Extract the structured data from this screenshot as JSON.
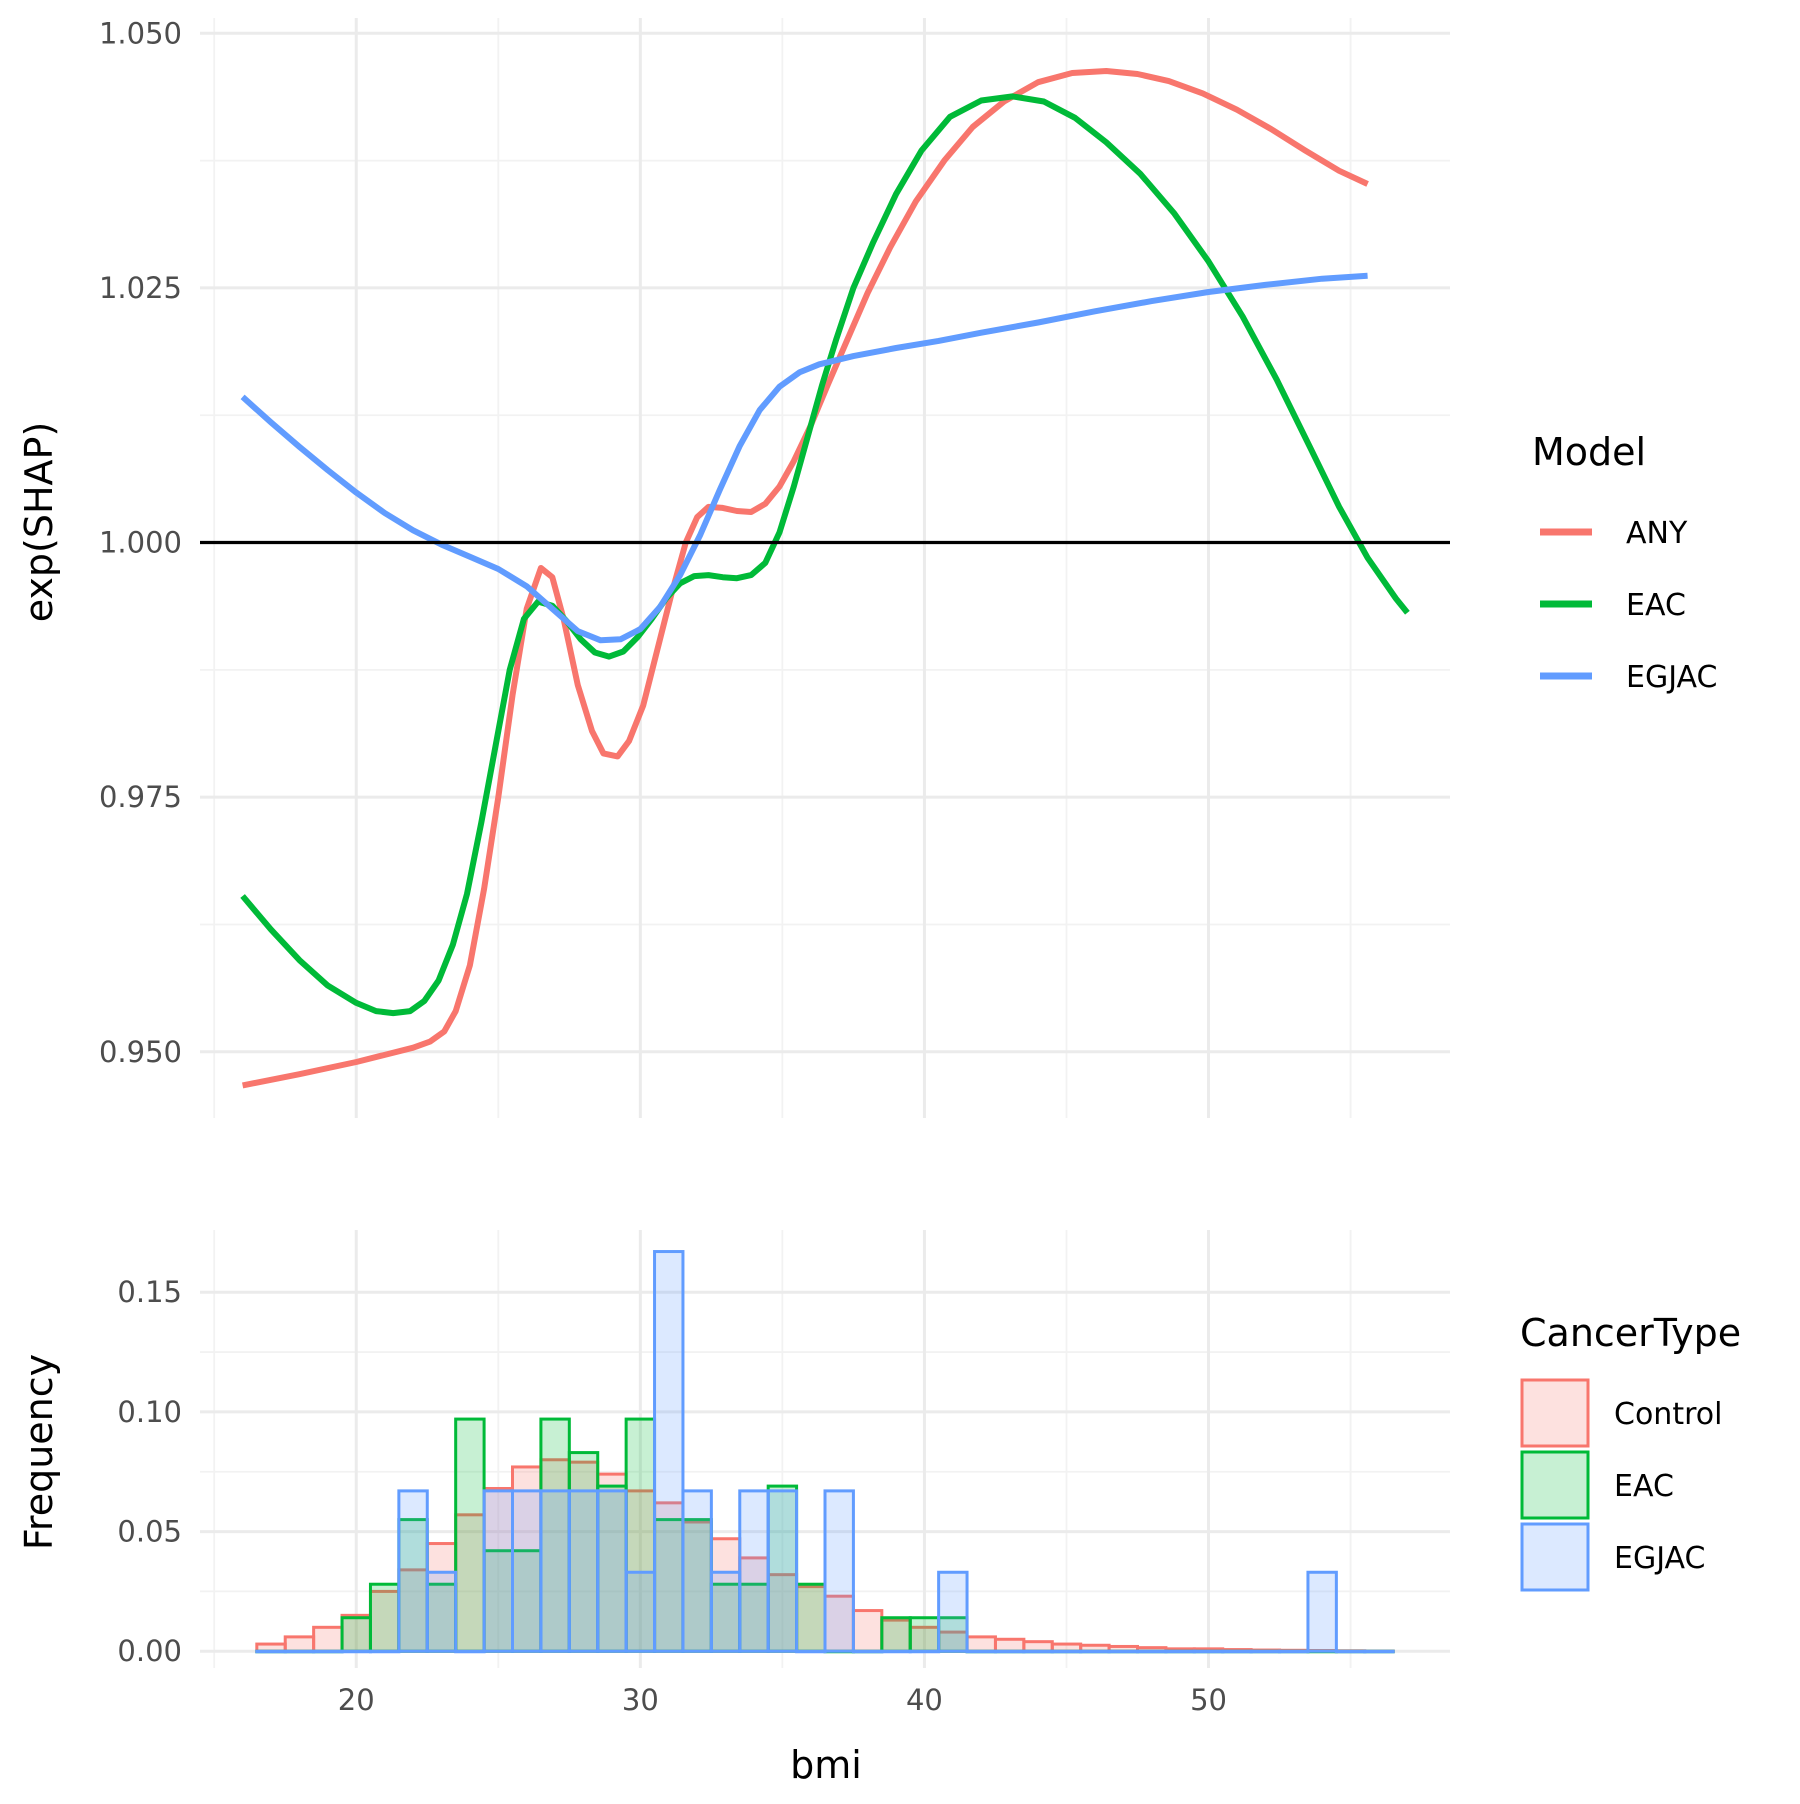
{
  "chart_data": [
    {
      "type": "line",
      "xlabel": "",
      "ylabel": "exp(SHAP)",
      "xlim": [
        14.5,
        58.5
      ],
      "ylim": [
        0.9435,
        1.0515
      ],
      "yticks": [
        0.95,
        0.975,
        1.0,
        1.025,
        1.05
      ],
      "ytick_labels": [
        "0.950",
        "0.975",
        "1.000",
        "1.025",
        "1.050"
      ],
      "xticks": [
        20,
        30,
        40,
        50
      ],
      "show_x_tick_labels": false,
      "grid": true,
      "reference_line": 1.0,
      "legend": {
        "title": "Model",
        "position": "right"
      },
      "series": [
        {
          "name": "ANY",
          "color": "#F8766D",
          "points": [
            [
              16,
              0.9467
            ],
            [
              18,
              0.9478
            ],
            [
              20,
              0.949
            ],
            [
              22,
              0.9504
            ],
            [
              22.6,
              0.951
            ],
            [
              23.1,
              0.952
            ],
            [
              23.5,
              0.954
            ],
            [
              24,
              0.9585
            ],
            [
              24.5,
              0.966
            ],
            [
              25,
              0.975
            ],
            [
              25.5,
              0.985
            ],
            [
              26,
              0.9935
            ],
            [
              26.5,
              0.9975
            ],
            [
              26.9,
              0.9966
            ],
            [
              27.3,
              0.9925
            ],
            [
              27.8,
              0.986
            ],
            [
              28.3,
              0.9815
            ],
            [
              28.7,
              0.9793
            ],
            [
              29.2,
              0.979
            ],
            [
              29.6,
              0.9805
            ],
            [
              30.1,
              0.984
            ],
            [
              30.6,
              0.9895
            ],
            [
              31.1,
              0.995
            ],
            [
              31.6,
              1.0
            ],
            [
              32,
              1.0025
            ],
            [
              32.4,
              1.0035
            ],
            [
              32.9,
              1.0034
            ],
            [
              33.4,
              1.0031
            ],
            [
              33.9,
              1.003
            ],
            [
              34.4,
              1.0038
            ],
            [
              34.9,
              1.0055
            ],
            [
              35.4,
              1.008
            ],
            [
              36,
              1.0115
            ],
            [
              36.6,
              1.0155
            ],
            [
              37.3,
              1.02
            ],
            [
              38,
              1.0245
            ],
            [
              38.8,
              1.029
            ],
            [
              39.7,
              1.0335
            ],
            [
              40.7,
              1.0375
            ],
            [
              41.7,
              1.0408
            ],
            [
              42.8,
              1.0433
            ],
            [
              44,
              1.0452
            ],
            [
              45.2,
              1.0461
            ],
            [
              46.4,
              1.0463
            ],
            [
              47.5,
              1.046
            ],
            [
              48.6,
              1.0453
            ],
            [
              49.8,
              1.0441
            ],
            [
              51,
              1.0425
            ],
            [
              52.2,
              1.0406
            ],
            [
              53.4,
              1.0385
            ],
            [
              54.6,
              1.0365
            ],
            [
              55.6,
              1.0352
            ]
          ]
        },
        {
          "name": "EAC",
          "color": "#00BA38",
          "points": [
            [
              16,
              0.9653
            ],
            [
              17,
              0.962
            ],
            [
              18,
              0.959
            ],
            [
              19,
              0.9565
            ],
            [
              20,
              0.9548
            ],
            [
              20.7,
              0.954
            ],
            [
              21.3,
              0.9538
            ],
            [
              21.9,
              0.954
            ],
            [
              22.4,
              0.955
            ],
            [
              22.9,
              0.957
            ],
            [
              23.4,
              0.9605
            ],
            [
              23.9,
              0.9655
            ],
            [
              24.4,
              0.9725
            ],
            [
              24.9,
              0.98
            ],
            [
              25.4,
              0.9875
            ],
            [
              25.9,
              0.9925
            ],
            [
              26.4,
              0.9942
            ],
            [
              26.9,
              0.9938
            ],
            [
              27.4,
              0.9923
            ],
            [
              27.9,
              0.9905
            ],
            [
              28.4,
              0.9892
            ],
            [
              28.9,
              0.9888
            ],
            [
              29.4,
              0.9893
            ],
            [
              29.9,
              0.9907
            ],
            [
              30.4,
              0.9925
            ],
            [
              30.9,
              0.9945
            ],
            [
              31.4,
              0.996
            ],
            [
              31.9,
              0.9967
            ],
            [
              32.4,
              0.9968
            ],
            [
              32.9,
              0.9966
            ],
            [
              33.4,
              0.9965
            ],
            [
              33.9,
              0.9968
            ],
            [
              34.4,
              0.998
            ],
            [
              34.9,
              1.001
            ],
            [
              35.4,
              1.0055
            ],
            [
              35.9,
              1.0105
            ],
            [
              36.4,
              1.0155
            ],
            [
              36.9,
              1.02
            ],
            [
              37.5,
              1.025
            ],
            [
              38.2,
              1.0295
            ],
            [
              39,
              1.0342
            ],
            [
              39.9,
              1.0385
            ],
            [
              40.9,
              1.0418
            ],
            [
              42,
              1.0434
            ],
            [
              43.1,
              1.0438
            ],
            [
              44.2,
              1.0433
            ],
            [
              45.3,
              1.0417
            ],
            [
              46.4,
              1.0393
            ],
            [
              47.6,
              1.0362
            ],
            [
              48.8,
              1.0323
            ],
            [
              50,
              1.0276
            ],
            [
              51.2,
              1.0222
            ],
            [
              52.4,
              1.016
            ],
            [
              53.6,
              1.0092
            ],
            [
              54.6,
              1.0035
            ],
            [
              55.6,
              0.9985
            ],
            [
              56.6,
              0.9945
            ],
            [
              57,
              0.9931
            ]
          ]
        },
        {
          "name": "EGJAC",
          "color": "#619CFF",
          "points": [
            [
              16,
              1.0143
            ],
            [
              17,
              1.0118
            ],
            [
              18,
              1.0094
            ],
            [
              19,
              1.0071
            ],
            [
              20,
              1.0049
            ],
            [
              21,
              1.0029
            ],
            [
              22,
              1.0012
            ],
            [
              23,
              0.9998
            ],
            [
              24,
              0.9986
            ],
            [
              25,
              0.9974
            ],
            [
              26,
              0.9957
            ],
            [
              26.9,
              0.9935
            ],
            [
              27.8,
              0.9913
            ],
            [
              28.6,
              0.9904
            ],
            [
              29.3,
              0.9905
            ],
            [
              30,
              0.9915
            ],
            [
              30.7,
              0.9937
            ],
            [
              31.4,
              0.9968
            ],
            [
              32.1,
              1.0007
            ],
            [
              32.8,
              1.0052
            ],
            [
              33.5,
              1.0095
            ],
            [
              34.2,
              1.013
            ],
            [
              34.9,
              1.0153
            ],
            [
              35.6,
              1.0167
            ],
            [
              36.3,
              1.0175
            ],
            [
              37.5,
              1.0183
            ],
            [
              39,
              1.0191
            ],
            [
              40.5,
              1.0198
            ],
            [
              42,
              1.0206
            ],
            [
              44,
              1.0216
            ],
            [
              46,
              1.0227
            ],
            [
              48,
              1.0237
            ],
            [
              50,
              1.0246
            ],
            [
              52,
              1.0253
            ],
            [
              54,
              1.0259
            ],
            [
              55.6,
              1.0262
            ]
          ]
        }
      ]
    },
    {
      "type": "bar",
      "xlabel": "bmi",
      "ylabel": "Frequency",
      "xlim": [
        14.5,
        58.5
      ],
      "ylim": [
        -0.007,
        0.176
      ],
      "yticks": [
        0,
        0.05,
        0.1,
        0.15
      ],
      "ytick_labels": [
        "0.00",
        "0.05",
        "0.10",
        "0.15"
      ],
      "xticks": [
        20,
        30,
        40,
        50
      ],
      "xtick_labels": [
        "20",
        "30",
        "40",
        "50"
      ],
      "bin_start": 16.5,
      "bin_width": 1,
      "grid": true,
      "legend": {
        "title": "CancerType",
        "position": "right"
      },
      "series": [
        {
          "name": "Control",
          "color": "#F8766D",
          "values": [
            0.003,
            0.006,
            0.01,
            0.015,
            0.025,
            0.034,
            0.045,
            0.057,
            0.068,
            0.077,
            0.08,
            0.079,
            0.074,
            0.067,
            0.062,
            0.054,
            0.047,
            0.039,
            0.032,
            0.027,
            0.023,
            0.017,
            0.013,
            0.01,
            0.008,
            0.006,
            0.005,
            0.004,
            0.003,
            0.0025,
            0.002,
            0.0015,
            0.001,
            0.001,
            0.0007,
            0.0005,
            0.0004,
            0.0003,
            0.0002,
            0.0001
          ]
        },
        {
          "name": "EAC",
          "color": "#00BA38",
          "values": [
            0,
            0,
            0,
            0.014,
            0.028,
            0.055,
            0.028,
            0.097,
            0.042,
            0.042,
            0.097,
            0.083,
            0.069,
            0.097,
            0.055,
            0.055,
            0.028,
            0.028,
            0.069,
            0.028,
            0,
            0,
            0.014,
            0.014,
            0.014,
            0,
            0,
            0,
            0,
            0,
            0,
            0,
            0,
            0,
            0,
            0,
            0,
            0,
            0,
            0
          ]
        },
        {
          "name": "EGJAC",
          "color": "#619CFF",
          "values": [
            0,
            0,
            0,
            0,
            0,
            0.067,
            0.033,
            0,
            0.067,
            0.067,
            0.067,
            0.067,
            0.067,
            0.033,
            0.167,
            0.067,
            0.033,
            0.067,
            0.067,
            0,
            0.067,
            0,
            0,
            0,
            0.033,
            0,
            0,
            0,
            0,
            0,
            0,
            0,
            0,
            0,
            0,
            0,
            0,
            0.033,
            0,
            0
          ]
        }
      ]
    }
  ]
}
